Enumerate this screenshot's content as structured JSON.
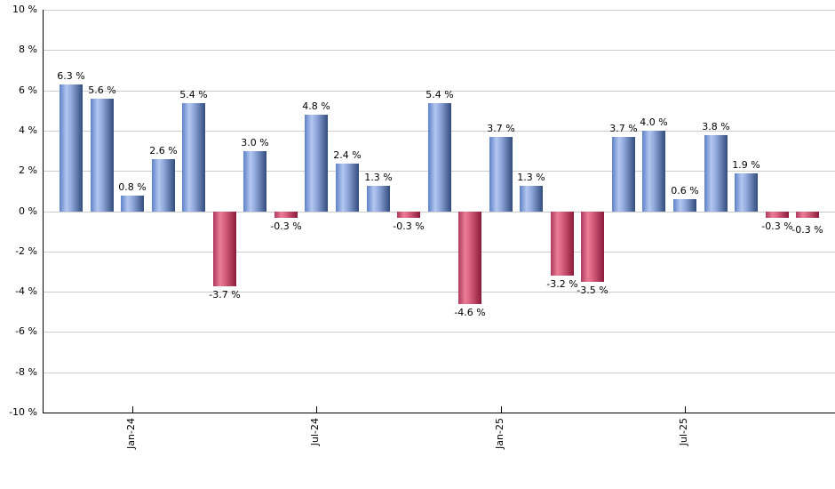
{
  "chart_data": {
    "type": "bar",
    "title": "",
    "xlabel": "",
    "ylabel": "",
    "ylim": [
      -10,
      10
    ],
    "y_tick_interval": 2,
    "grid": true,
    "legend": false,
    "y_tick_values": [
      10,
      8,
      6,
      4,
      2,
      0,
      -2,
      -4,
      -6,
      -8,
      -10
    ],
    "y_tick_labels": [
      "10 %",
      "8 %",
      "6 %",
      "4 %",
      "2 %",
      "0 %",
      "-2 %",
      "-4 %",
      "-6 %",
      "-8 %",
      "-10 %"
    ],
    "x_tick_labels": [
      {
        "label": "Jan-24",
        "bar_index": 2
      },
      {
        "label": "Jul-24",
        "bar_index": 8
      },
      {
        "label": "Jan-25",
        "bar_index": 14
      },
      {
        "label": "Jul-25",
        "bar_index": 20
      }
    ],
    "points": [
      {
        "value": 6.3,
        "label": "6.3 %"
      },
      {
        "value": 5.6,
        "label": "5.6 %"
      },
      {
        "value": 0.8,
        "label": "0.8 %"
      },
      {
        "value": 2.6,
        "label": "2.6 %"
      },
      {
        "value": 5.4,
        "label": "5.4 %"
      },
      {
        "value": -3.7,
        "label": "-3.7 %"
      },
      {
        "value": 3.0,
        "label": "3.0 %"
      },
      {
        "value": -0.3,
        "label": "-0.3 %"
      },
      {
        "value": 4.8,
        "label": "4.8 %"
      },
      {
        "value": 2.4,
        "label": "2.4 %"
      },
      {
        "value": 1.3,
        "label": "1.3 %"
      },
      {
        "value": -0.3,
        "label": "-0.3 %"
      },
      {
        "value": 5.4,
        "label": "5.4 %"
      },
      {
        "value": -4.6,
        "label": "-4.6 %"
      },
      {
        "value": 3.7,
        "label": "3.7 %"
      },
      {
        "value": 1.3,
        "label": "1.3 %"
      },
      {
        "value": -3.2,
        "label": "-3.2 %"
      },
      {
        "value": -3.5,
        "label": "-3.5 %"
      },
      {
        "value": 3.7,
        "label": "3.7 %"
      },
      {
        "value": 4.0,
        "label": "4.0 %"
      },
      {
        "value": 0.6,
        "label": "0.6 %"
      },
      {
        "value": 3.8,
        "label": "3.8 %"
      },
      {
        "value": 1.9,
        "label": "1.9 %"
      },
      {
        "value": -0.3,
        "label": "-0.3 %"
      },
      {
        "value": -0.3,
        "label": "-0.3 %",
        "label_dy": 4
      }
    ],
    "colors": {
      "positive_gradient": [
        "#5E81C8",
        "#B4C7EF",
        "#93AADF",
        "#314C7C"
      ],
      "negative_gradient": [
        "#AF3A60",
        "#EA7E96",
        "#D8617F",
        "#8C1A3A"
      ],
      "gridline": "#CCCCCC",
      "axis": "#000000",
      "label": "#000000",
      "background": "#FFFFFF"
    }
  }
}
